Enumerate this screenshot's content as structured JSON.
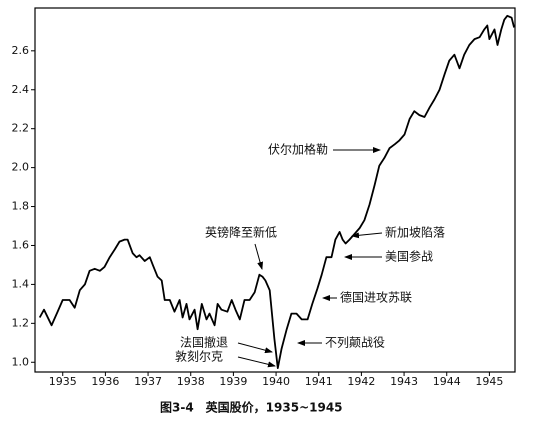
{
  "chart_data": {
    "type": "line",
    "title": "图3-4　英国股价，1935~1945",
    "x": [
      1934.46,
      1934.56,
      1934.74,
      1934.88,
      1935.0,
      1935.16,
      1935.28,
      1935.4,
      1935.52,
      1935.63,
      1935.75,
      1935.87,
      1935.98,
      1936.1,
      1936.22,
      1936.33,
      1936.45,
      1936.52,
      1936.64,
      1936.73,
      1936.8,
      1936.92,
      1937.04,
      1937.11,
      1937.22,
      1937.32,
      1937.39,
      1937.51,
      1937.62,
      1937.74,
      1937.81,
      1937.9,
      1937.97,
      1938.09,
      1938.16,
      1938.26,
      1938.37,
      1938.44,
      1938.56,
      1938.63,
      1938.72,
      1938.86,
      1938.96,
      1939.05,
      1939.15,
      1939.26,
      1939.38,
      1939.5,
      1939.61,
      1939.68,
      1939.75,
      1939.85,
      1939.96,
      1940.04,
      1940.13,
      1940.25,
      1940.36,
      1940.48,
      1940.6,
      1940.74,
      1940.85,
      1940.97,
      1941.07,
      1941.18,
      1941.3,
      1941.39,
      1941.49,
      1941.56,
      1941.63,
      1941.72,
      1941.84,
      1941.96,
      1942.07,
      1942.19,
      1942.31,
      1942.42,
      1942.54,
      1942.66,
      1942.78,
      1942.89,
      1943.01,
      1943.13,
      1943.24,
      1943.36,
      1943.48,
      1943.6,
      1943.71,
      1943.83,
      1943.95,
      1944.06,
      1944.18,
      1944.3,
      1944.41,
      1944.53,
      1944.65,
      1944.77,
      1944.88,
      1944.95,
      1945.0,
      1945.12,
      1945.19,
      1945.28,
      1945.35,
      1945.42,
      1945.52,
      1945.58
    ],
    "series": [
      {
        "color": "#000000",
        "values": [
          1.23,
          1.27,
          1.19,
          1.26,
          1.32,
          1.32,
          1.28,
          1.37,
          1.4,
          1.47,
          1.48,
          1.47,
          1.49,
          1.54,
          1.58,
          1.62,
          1.63,
          1.63,
          1.56,
          1.54,
          1.55,
          1.52,
          1.54,
          1.5,
          1.44,
          1.42,
          1.32,
          1.32,
          1.26,
          1.32,
          1.23,
          1.3,
          1.22,
          1.27,
          1.17,
          1.3,
          1.22,
          1.25,
          1.19,
          1.3,
          1.27,
          1.26,
          1.32,
          1.27,
          1.22,
          1.32,
          1.32,
          1.36,
          1.45,
          1.44,
          1.42,
          1.37,
          1.12,
          0.97,
          1.07,
          1.17,
          1.25,
          1.25,
          1.22,
          1.22,
          1.3,
          1.38,
          1.45,
          1.54,
          1.54,
          1.63,
          1.67,
          1.63,
          1.61,
          1.63,
          1.66,
          1.69,
          1.73,
          1.81,
          1.91,
          2.01,
          2.05,
          2.1,
          2.12,
          2.14,
          2.17,
          2.25,
          2.29,
          2.27,
          2.26,
          2.31,
          2.35,
          2.4,
          2.48,
          2.55,
          2.58,
          2.51,
          2.58,
          2.63,
          2.66,
          2.67,
          2.71,
          2.73,
          2.66,
          2.71,
          2.63,
          2.71,
          2.76,
          2.78,
          2.77,
          2.72
        ]
      }
    ],
    "xlim": [
      1934.35,
      1945.6
    ],
    "xticks": [
      1935,
      1936,
      1937,
      1938,
      1939,
      1940,
      1941,
      1942,
      1943,
      1944,
      1945
    ],
    "ylim": [
      0.95,
      2.82
    ],
    "yticks": [
      {
        "value": 1.0,
        "label": "1.0"
      },
      1.2,
      1.4,
      1.6,
      1.8,
      {
        "value": 2.0,
        "label": "2.0"
      },
      2.2,
      2.4,
      2.6
    ],
    "annotations": [
      "伏尔加格勒",
      "英镑降至新低",
      "新加坡陷落",
      "美国参战",
      "德国进攻苏联",
      "不列颠战役",
      "法国撤退",
      "敦刻尔克"
    ]
  }
}
